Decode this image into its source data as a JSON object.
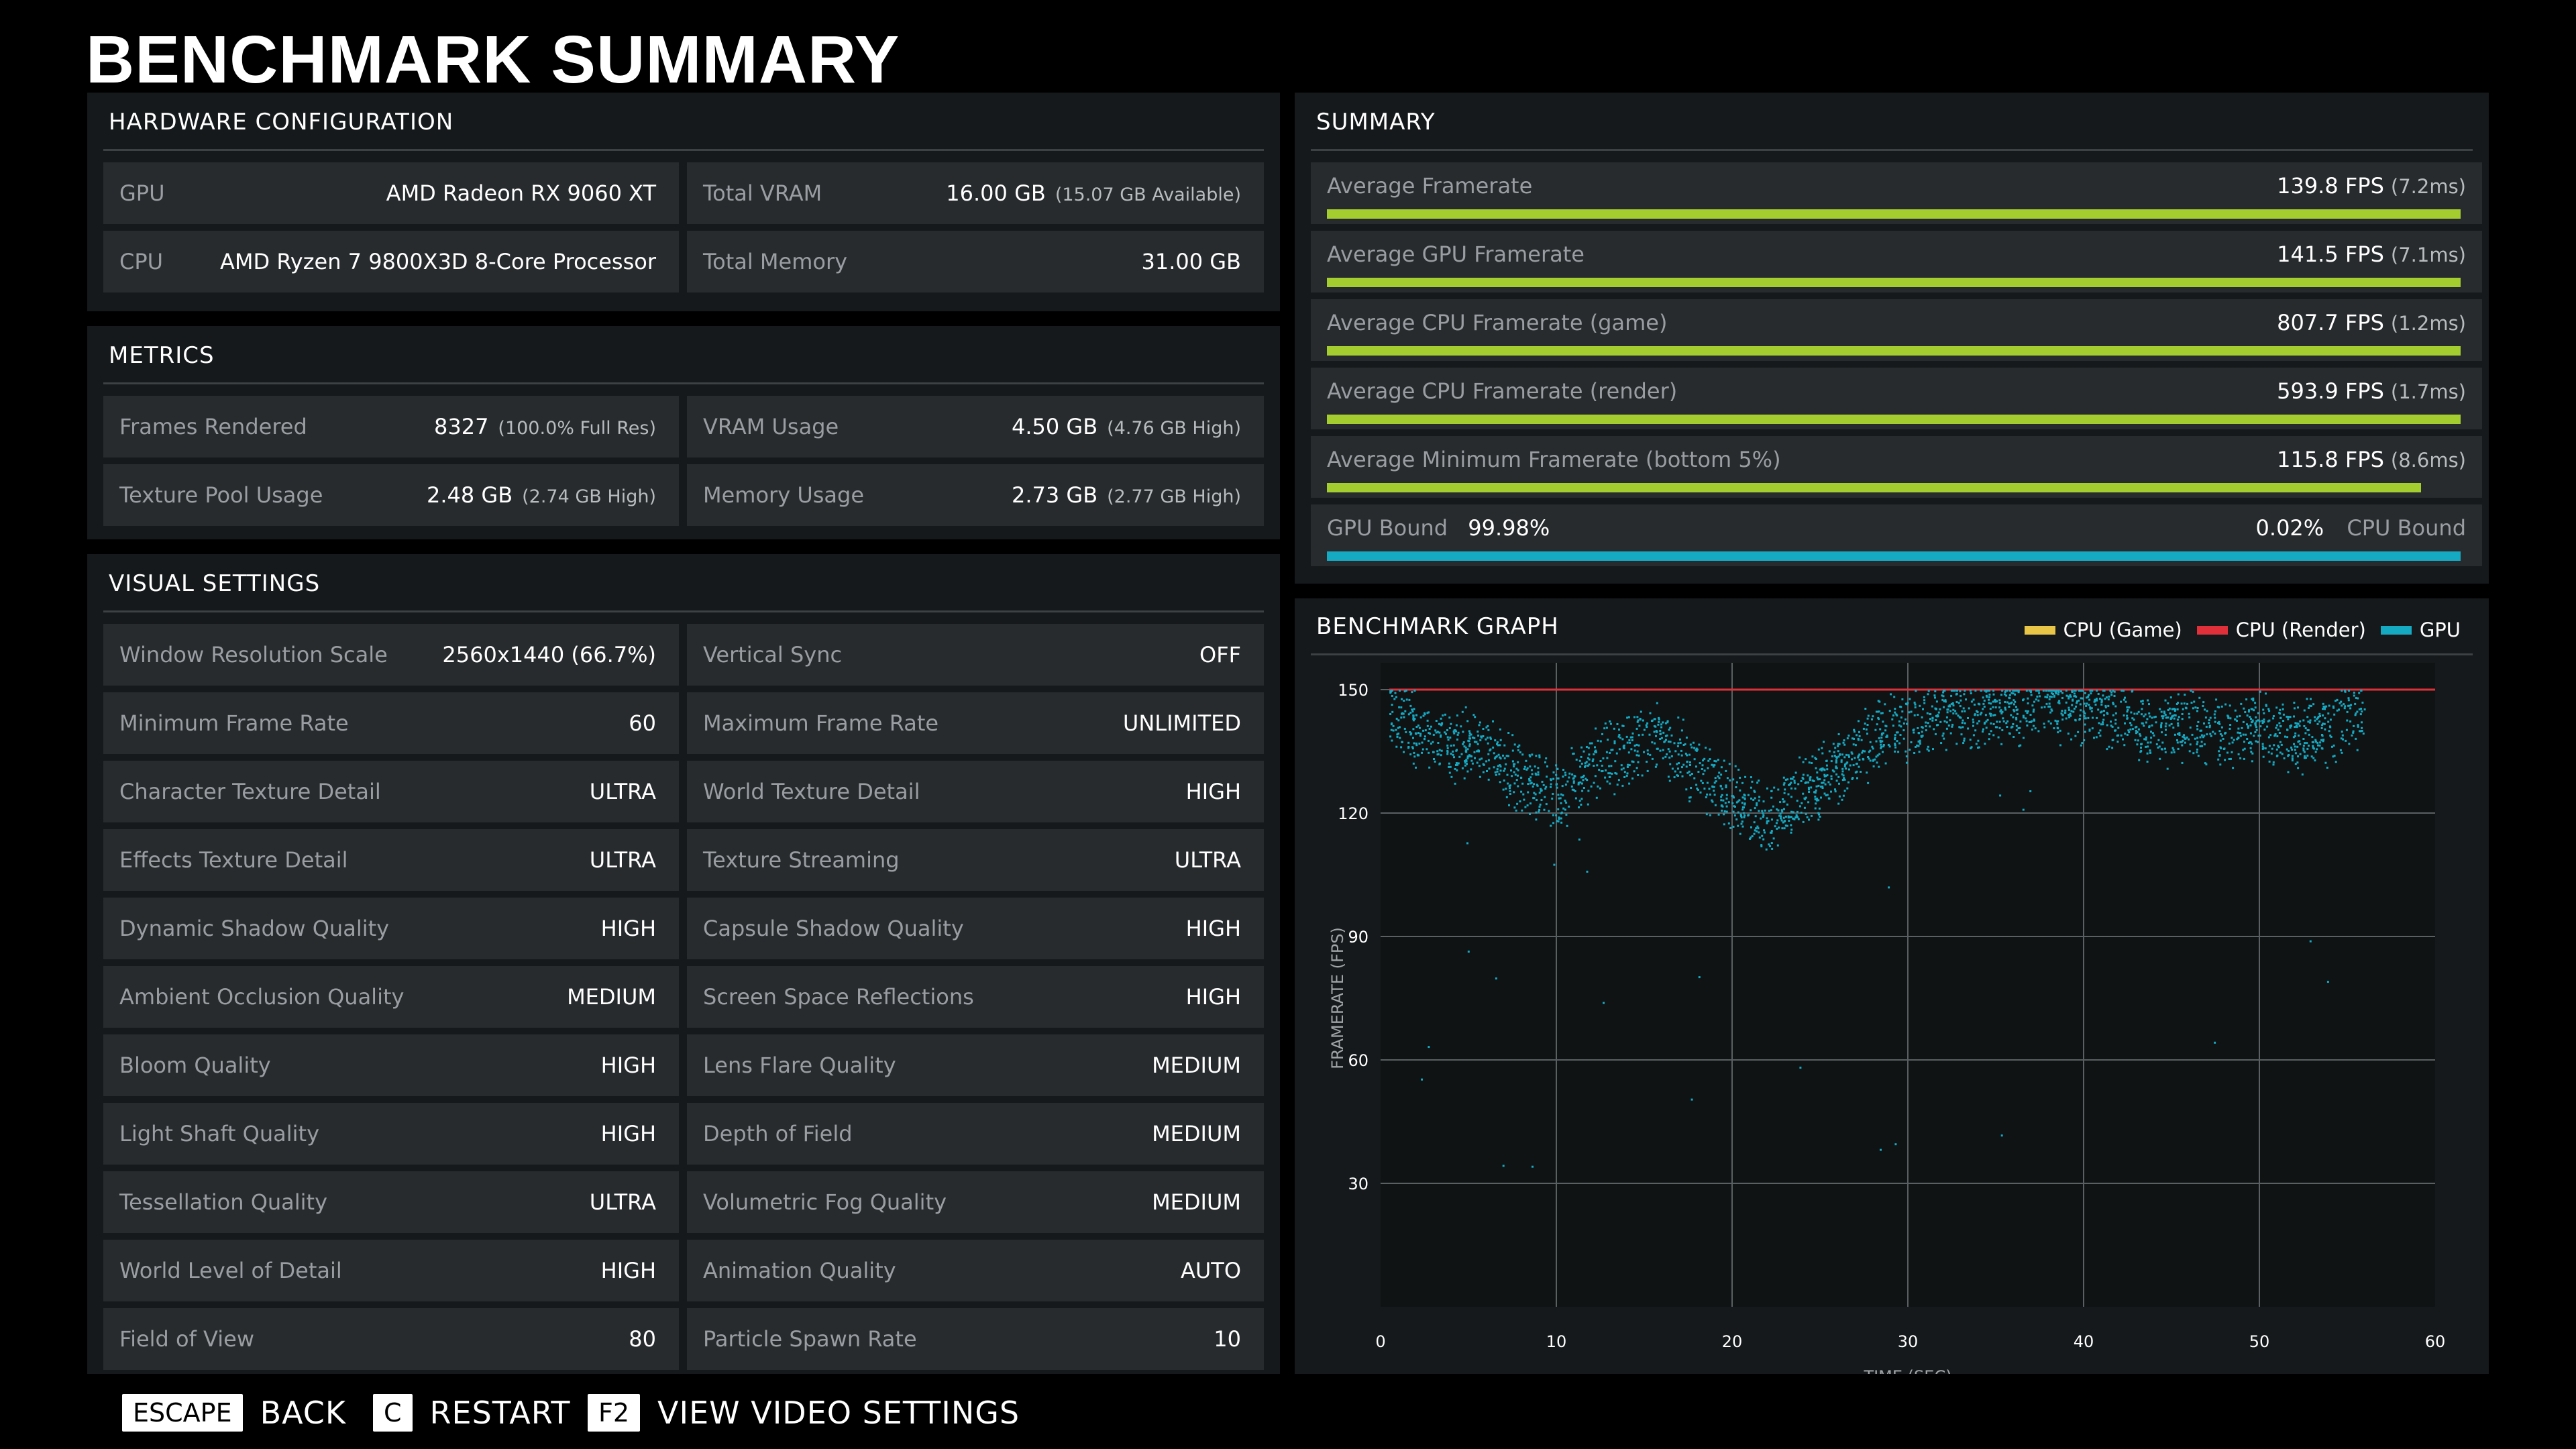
{
  "title": "BENCHMARK SUMMARY",
  "hardware": {
    "title": "HARDWARE CONFIGURATION",
    "rows": [
      {
        "label": "GPU",
        "value": "AMD Radeon RX 9060 XT",
        "sub": ""
      },
      {
        "label": "Total VRAM",
        "value": "16.00 GB",
        "sub": "(15.07 GB Available)"
      },
      {
        "label": "CPU",
        "value": "AMD Ryzen 7 9800X3D 8-Core Processor",
        "sub": ""
      },
      {
        "label": "Total Memory",
        "value": "31.00 GB",
        "sub": ""
      }
    ]
  },
  "metrics": {
    "title": "METRICS",
    "rows": [
      {
        "label": "Frames Rendered",
        "value": "8327",
        "sub": "(100.0% Full Res)"
      },
      {
        "label": "VRAM Usage",
        "value": "4.50 GB",
        "sub": "(4.76 GB High)"
      },
      {
        "label": "Texture Pool Usage",
        "value": "2.48 GB",
        "sub": "(2.74 GB High)"
      },
      {
        "label": "Memory Usage",
        "value": "2.73 GB",
        "sub": "(2.77 GB High)"
      }
    ]
  },
  "visual": {
    "title": "VISUAL SETTINGS",
    "rows": [
      {
        "label": "Window Resolution Scale",
        "value": "2560x1440 (66.7%)"
      },
      {
        "label": "Vertical Sync",
        "value": "OFF"
      },
      {
        "label": "Minimum Frame Rate",
        "value": "60"
      },
      {
        "label": "Maximum Frame Rate",
        "value": "UNLIMITED"
      },
      {
        "label": "Character Texture Detail",
        "value": "ULTRA"
      },
      {
        "label": "World Texture Detail",
        "value": "HIGH"
      },
      {
        "label": "Effects Texture Detail",
        "value": "ULTRA"
      },
      {
        "label": "Texture Streaming",
        "value": "ULTRA"
      },
      {
        "label": "Dynamic Shadow Quality",
        "value": "HIGH"
      },
      {
        "label": "Capsule Shadow Quality",
        "value": "HIGH"
      },
      {
        "label": "Ambient Occlusion Quality",
        "value": "MEDIUM"
      },
      {
        "label": "Screen Space Reflections",
        "value": "HIGH"
      },
      {
        "label": "Bloom Quality",
        "value": "HIGH"
      },
      {
        "label": "Lens Flare Quality",
        "value": "MEDIUM"
      },
      {
        "label": "Light Shaft Quality",
        "value": "HIGH"
      },
      {
        "label": "Depth of Field",
        "value": "MEDIUM"
      },
      {
        "label": "Tessellation Quality",
        "value": "ULTRA"
      },
      {
        "label": "Volumetric Fog Quality",
        "value": "MEDIUM"
      },
      {
        "label": "World Level of Detail",
        "value": "HIGH"
      },
      {
        "label": "Animation Quality",
        "value": "AUTO"
      },
      {
        "label": "Field of View",
        "value": "80"
      },
      {
        "label": "Particle Spawn Rate",
        "value": "10"
      }
    ]
  },
  "summary": {
    "title": "SUMMARY",
    "rows": [
      {
        "label": "Average Framerate",
        "value": "139.8 FPS",
        "sub": "(7.2ms)",
        "fill": 1.0
      },
      {
        "label": "Average GPU Framerate",
        "value": "141.5 FPS",
        "sub": "(7.1ms)",
        "fill": 1.0
      },
      {
        "label": "Average CPU Framerate (game)",
        "value": "807.7 FPS",
        "sub": "(1.2ms)",
        "fill": 1.0
      },
      {
        "label": "Average CPU Framerate (render)",
        "value": "593.9 FPS",
        "sub": "(1.7ms)",
        "fill": 1.0
      },
      {
        "label": "Average Minimum Framerate (bottom 5%)",
        "value": "115.8 FPS",
        "sub": "(8.6ms)",
        "fill": 0.965
      }
    ],
    "bound": {
      "gpu_label": "GPU Bound",
      "gpu_value": "99.98%",
      "cpu_value": "0.02%",
      "cpu_label": "CPU Bound",
      "gpu_fraction": 0.9998
    },
    "bar_color": "#a4cd2f",
    "bound_color": "#16a9c2"
  },
  "graph": {
    "title": "BENCHMARK GRAPH",
    "legend": [
      {
        "name": "CPU (Game)",
        "color": "#e8c547"
      },
      {
        "name": "CPU (Render)",
        "color": "#e0303a"
      },
      {
        "name": "GPU",
        "color": "#16a9c2"
      }
    ]
  },
  "chart_data": {
    "type": "scatter",
    "xlabel": "TIME (SEC)",
    "ylabel": "FRAMERATE (FPS)",
    "xlim": [
      0,
      60
    ],
    "ylim": [
      0,
      150
    ],
    "x_ticks": [
      0,
      10,
      20,
      30,
      40,
      50,
      60
    ],
    "y_ticks": [
      30,
      60,
      90,
      120,
      150
    ],
    "grid": true,
    "series": [
      {
        "name": "CPU (Render)",
        "color": "#e0303a",
        "type": "line",
        "x": [
          0.5,
          60
        ],
        "y": [
          150,
          150
        ]
      },
      {
        "name": "GPU",
        "color": "#16a9c2",
        "type": "scatter",
        "trend_x": [
          0.5,
          2,
          4,
          6,
          8,
          10,
          12,
          14,
          16,
          18,
          20,
          22,
          24,
          26,
          28,
          30,
          32,
          34,
          36,
          38,
          40,
          42,
          44,
          46,
          48,
          50,
          52,
          54,
          56
        ],
        "trend_y": [
          145,
          140,
          136,
          137,
          128,
          124,
          132,
          136,
          138,
          130,
          124,
          118,
          126,
          132,
          138,
          142,
          144,
          145,
          146,
          146,
          145,
          144,
          140,
          142,
          140,
          141,
          138,
          141,
          145
        ],
        "x_range": [
          0.5,
          56
        ],
        "count": 8327
      }
    ]
  },
  "footer": [
    {
      "key": "ESCAPE",
      "label": "BACK"
    },
    {
      "key": "C",
      "label": "RESTART"
    },
    {
      "key": "F2",
      "label": "VIEW VIDEO SETTINGS"
    }
  ]
}
